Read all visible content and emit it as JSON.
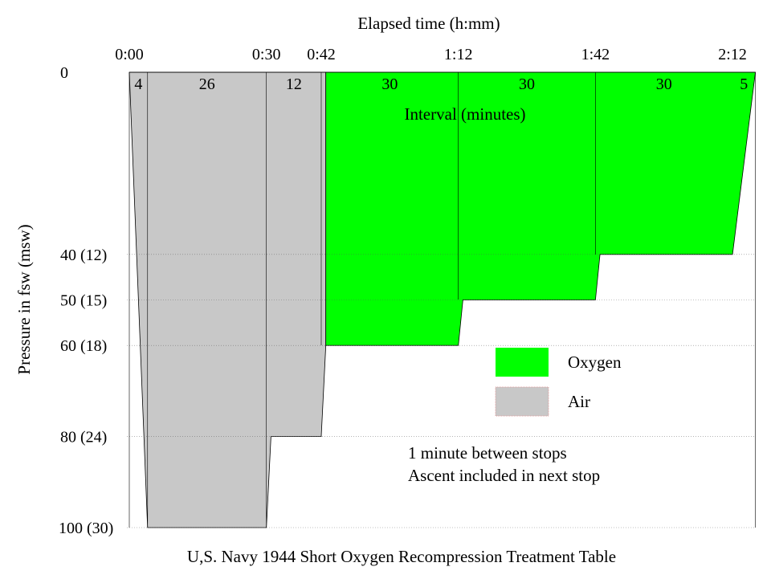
{
  "chart_data": {
    "type": "area",
    "title": "U,S. Navy 1944 Short Oxygen Recompression Treatment Table",
    "xlabel": "Elapsed time (h:mm)",
    "ylabel": "Pressure in fsw (msw)",
    "interval_label": "Interval (minutes)",
    "x_ticks": [
      "0:00",
      "0:30",
      "0:42",
      "1:12",
      "1:42",
      "2:12"
    ],
    "xlim": [
      "0:00",
      "2:17"
    ],
    "y_ticks": [
      {
        "value": 0,
        "label": "0"
      },
      {
        "value": 40,
        "label": "40 (12)"
      },
      {
        "value": 50,
        "label": "50 (15)"
      },
      {
        "value": 60,
        "label": "60 (18)"
      },
      {
        "value": 80,
        "label": "80 (24)"
      },
      {
        "value": 100,
        "label": "100 (30)"
      }
    ],
    "ylim": [
      0,
      100
    ],
    "y_inverted": true,
    "intervals": [
      {
        "start": "0:00",
        "minutes": "4"
      },
      {
        "start": "0:04",
        "minutes": "26"
      },
      {
        "start": "0:30",
        "minutes": "12"
      },
      {
        "start": "0:42",
        "minutes": "30"
      },
      {
        "start": "1:12",
        "minutes": "30"
      },
      {
        "start": "1:42",
        "minutes": "30"
      },
      {
        "start": "2:12",
        "minutes": "5"
      }
    ],
    "series": [
      {
        "name": "Air",
        "color": "#c8c8c8",
        "points": [
          [
            "0:00",
            0
          ],
          [
            "0:04",
            100
          ],
          [
            "0:30",
            100
          ],
          [
            "0:31",
            80
          ],
          [
            "0:42",
            80
          ],
          [
            "0:43",
            60
          ],
          [
            "0:43",
            0
          ]
        ]
      },
      {
        "name": "Oxygen",
        "color": "#00ff00",
        "points": [
          [
            "0:43",
            0
          ],
          [
            "0:43",
            60
          ],
          [
            "1:12",
            60
          ],
          [
            "1:13",
            50
          ],
          [
            "1:42",
            50
          ],
          [
            "1:43",
            40
          ],
          [
            "2:12",
            40
          ],
          [
            "2:17",
            0
          ]
        ]
      }
    ],
    "legend_position": "center-right",
    "notes": [
      "1 minute between stops",
      "Ascent included in next stop"
    ]
  }
}
